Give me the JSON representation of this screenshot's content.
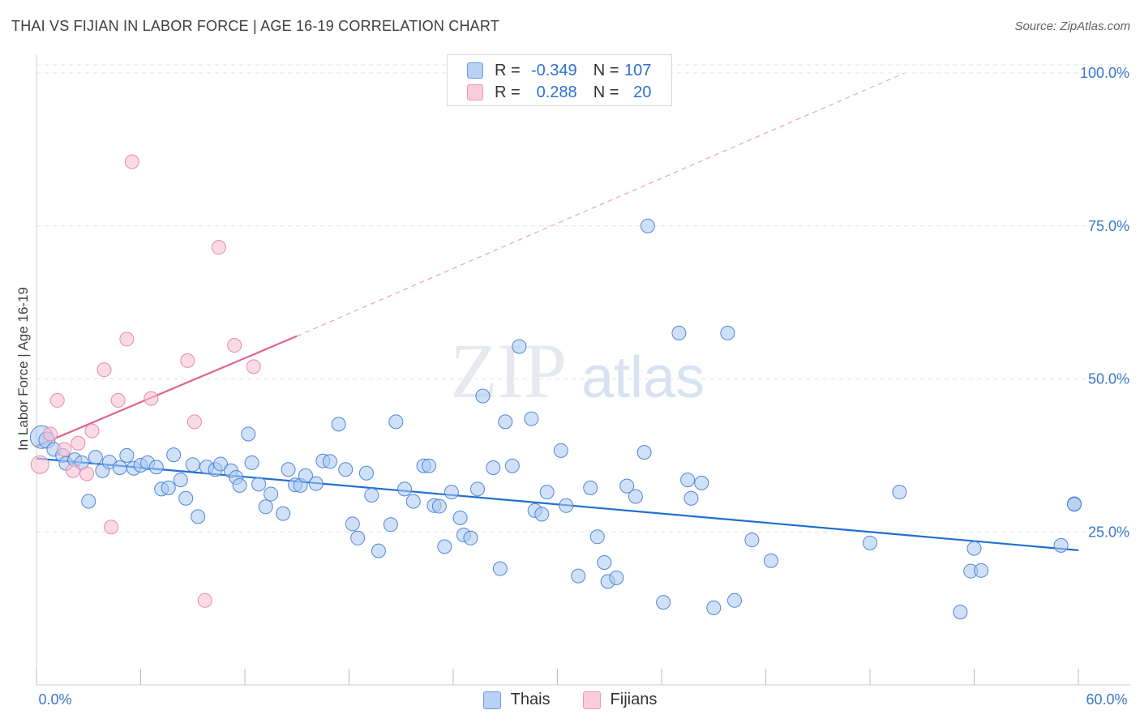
{
  "title": "THAI VS FIJIAN IN LABOR FORCE | AGE 16-19 CORRELATION CHART",
  "source": "Source: ZipAtlas.com",
  "watermark": {
    "zip": "ZIP",
    "atlas": "atlas"
  },
  "colors": {
    "thais_fill": "#a9c8f0",
    "thais_stroke": "#4f87d6",
    "thais_line": "#1f6fd1",
    "fijians_fill": "#f6c3d3",
    "fijians_stroke": "#e98aa8",
    "fijians_line": "#e2628f",
    "axis_text": "#3b78c9",
    "grid": "#e3e3e3"
  },
  "legend": {
    "rows": [
      {
        "series": "Thais",
        "r_label": "R =",
        "r_value": "-0.349",
        "n_label": "N =",
        "n_value": "107"
      },
      {
        "series": "Fijians",
        "r_label": "R =",
        "r_value": "0.288",
        "n_label": "N =",
        "n_value": "20"
      }
    ]
  },
  "bottom_legend": [
    "Thais",
    "Fijians"
  ],
  "chart_data": {
    "type": "scatter",
    "title": "THAI VS FIJIAN IN LABOR FORCE | AGE 16-19 CORRELATION CHART",
    "xlabel": "",
    "ylabel": "In Labor Force | Age 16-19",
    "xlim": [
      0,
      60
    ],
    "ylim": [
      0,
      100
    ],
    "x_ticks": [
      "0.0%",
      "60.0%"
    ],
    "y_ticks": [
      "25.0%",
      "50.0%",
      "75.0%",
      "100.0%"
    ],
    "y_tick_values": [
      25,
      50,
      75,
      100
    ],
    "grid": true,
    "legend_position": "top-center",
    "series": [
      {
        "name": "Thais",
        "trend": {
          "x0": 0,
          "y0": 37.0,
          "x1": 60,
          "y1": 22.0,
          "style": "solid"
        },
        "points": [
          [
            0.3,
            40.5
          ],
          [
            0.6,
            40.0
          ],
          [
            1.0,
            38.5
          ],
          [
            1.5,
            37.5
          ],
          [
            1.7,
            36.2
          ],
          [
            2.2,
            36.8
          ],
          [
            2.6,
            36.3
          ],
          [
            3.0,
            30.0
          ],
          [
            3.4,
            37.2
          ],
          [
            3.8,
            35.0
          ],
          [
            4.2,
            36.4
          ],
          [
            4.8,
            35.5
          ],
          [
            5.2,
            37.5
          ],
          [
            5.6,
            35.4
          ],
          [
            6.0,
            35.9
          ],
          [
            6.4,
            36.3
          ],
          [
            6.9,
            35.6
          ],
          [
            7.2,
            32.0
          ],
          [
            7.6,
            32.2
          ],
          [
            7.9,
            37.6
          ],
          [
            8.3,
            33.5
          ],
          [
            8.6,
            30.5
          ],
          [
            9.0,
            36.0
          ],
          [
            9.3,
            27.5
          ],
          [
            9.8,
            35.6
          ],
          [
            10.3,
            35.2
          ],
          [
            10.6,
            36.1
          ],
          [
            11.2,
            35.0
          ],
          [
            11.5,
            33.9
          ],
          [
            11.7,
            32.6
          ],
          [
            12.2,
            41.0
          ],
          [
            12.4,
            36.3
          ],
          [
            12.8,
            32.8
          ],
          [
            13.2,
            29.1
          ],
          [
            13.5,
            31.2
          ],
          [
            14.2,
            28.0
          ],
          [
            14.5,
            35.2
          ],
          [
            14.9,
            32.7
          ],
          [
            15.2,
            32.6
          ],
          [
            15.5,
            34.2
          ],
          [
            16.1,
            32.9
          ],
          [
            16.5,
            36.6
          ],
          [
            16.9,
            36.5
          ],
          [
            17.4,
            42.6
          ],
          [
            17.8,
            35.2
          ],
          [
            18.2,
            26.3
          ],
          [
            18.5,
            24.0
          ],
          [
            19.0,
            34.6
          ],
          [
            19.3,
            31.0
          ],
          [
            19.7,
            21.9
          ],
          [
            20.4,
            26.2
          ],
          [
            20.7,
            43.0
          ],
          [
            21.2,
            32.0
          ],
          [
            21.7,
            30.0
          ],
          [
            22.3,
            35.8
          ],
          [
            22.6,
            35.8
          ],
          [
            22.9,
            29.3
          ],
          [
            23.2,
            29.2
          ],
          [
            23.5,
            22.6
          ],
          [
            23.9,
            31.5
          ],
          [
            24.4,
            27.3
          ],
          [
            24.6,
            24.5
          ],
          [
            25.0,
            24.0
          ],
          [
            25.4,
            32.0
          ],
          [
            25.7,
            47.2
          ],
          [
            26.3,
            35.5
          ],
          [
            26.7,
            19.0
          ],
          [
            27.0,
            43.0
          ],
          [
            27.4,
            35.8
          ],
          [
            27.8,
            55.3
          ],
          [
            28.5,
            43.5
          ],
          [
            28.7,
            28.5
          ],
          [
            29.1,
            27.9
          ],
          [
            29.4,
            31.5
          ],
          [
            30.2,
            38.3
          ],
          [
            30.5,
            29.3
          ],
          [
            31.2,
            17.8
          ],
          [
            31.9,
            32.2
          ],
          [
            32.3,
            24.2
          ],
          [
            32.7,
            20.0
          ],
          [
            32.9,
            16.9
          ],
          [
            33.4,
            17.5
          ],
          [
            34.0,
            32.5
          ],
          [
            34.5,
            30.8
          ],
          [
            35.0,
            38.0
          ],
          [
            35.2,
            75.0
          ],
          [
            36.1,
            13.5
          ],
          [
            37.0,
            57.5
          ],
          [
            37.5,
            33.5
          ],
          [
            37.7,
            30.5
          ],
          [
            38.3,
            33.0
          ],
          [
            39.0,
            12.6
          ],
          [
            39.8,
            57.5
          ],
          [
            40.2,
            13.8
          ],
          [
            41.2,
            23.7
          ],
          [
            42.3,
            20.3
          ],
          [
            48.0,
            23.2
          ],
          [
            49.7,
            31.5
          ],
          [
            53.2,
            11.9
          ],
          [
            53.8,
            18.6
          ],
          [
            54.0,
            22.3
          ],
          [
            54.4,
            18.7
          ],
          [
            59.0,
            22.8
          ],
          [
            61.0,
            29.6
          ],
          [
            60.6,
            29.5
          ]
        ]
      },
      {
        "name": "Fijians",
        "trend": {
          "x0": 0,
          "y0": 39.0,
          "x1": 15,
          "y1": 57.0,
          "style": "solid",
          "extended_to": {
            "x": 50,
            "y": 100.0,
            "style": "dashed"
          }
        },
        "points": [
          [
            0.2,
            36.0
          ],
          [
            0.8,
            41.0
          ],
          [
            1.2,
            46.5
          ],
          [
            1.6,
            38.5
          ],
          [
            2.1,
            35.0
          ],
          [
            2.4,
            39.5
          ],
          [
            2.9,
            34.5
          ],
          [
            3.2,
            41.5
          ],
          [
            3.9,
            51.5
          ],
          [
            4.3,
            25.8
          ],
          [
            4.7,
            46.5
          ],
          [
            5.2,
            56.5
          ],
          [
            5.5,
            85.5
          ],
          [
            6.6,
            46.8
          ],
          [
            8.7,
            53.0
          ],
          [
            9.1,
            43.0
          ],
          [
            9.7,
            13.8
          ],
          [
            10.5,
            71.5
          ],
          [
            11.4,
            55.5
          ],
          [
            12.5,
            52.0
          ]
        ]
      }
    ]
  }
}
